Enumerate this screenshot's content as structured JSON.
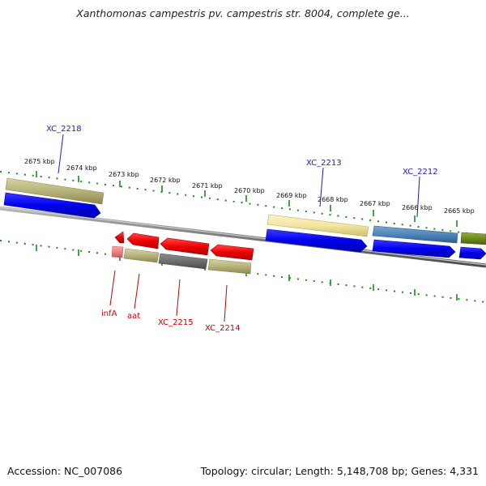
{
  "title": "Xanthomonas campestris pv. campestris str. 8004, complete ge...",
  "footer": {
    "accession": "Accession: NC_007086",
    "summary": "Topology: circular; Length: 5,148,708 bp; Genes: 4,331"
  },
  "colors": {
    "forward_cds": "#0000ee",
    "reverse_cds": "#ee0000",
    "feature_olive": "#b6b27a",
    "feature_pale_yellow": "#f2e6a0",
    "feature_steel_blue": "#4f86b8",
    "feature_dark_olive": "#6e8a1e",
    "feature_gray": "#6e6e6e",
    "feature_pink": "#f08080",
    "tick_green": "#1c8a1c",
    "backbone": "#7a7a7a",
    "forward_label": "#1a1acc",
    "reverse_label": "#cc0000"
  },
  "kbp_labels": [
    "2675 kbp",
    "2674 kbp",
    "2673 kbp",
    "2672 kbp",
    "2671 kbp",
    "2670 kbp",
    "2669 kbp",
    "2668 kbp",
    "2667 kbp",
    "2666 kbp",
    "2665 kbp"
  ],
  "gene_labels_forward": [
    "XC_2218",
    "XC_2213",
    "XC_2212"
  ],
  "gene_labels_reverse": [
    "infA",
    "aat",
    "XC_2215",
    "XC_2214"
  ]
}
